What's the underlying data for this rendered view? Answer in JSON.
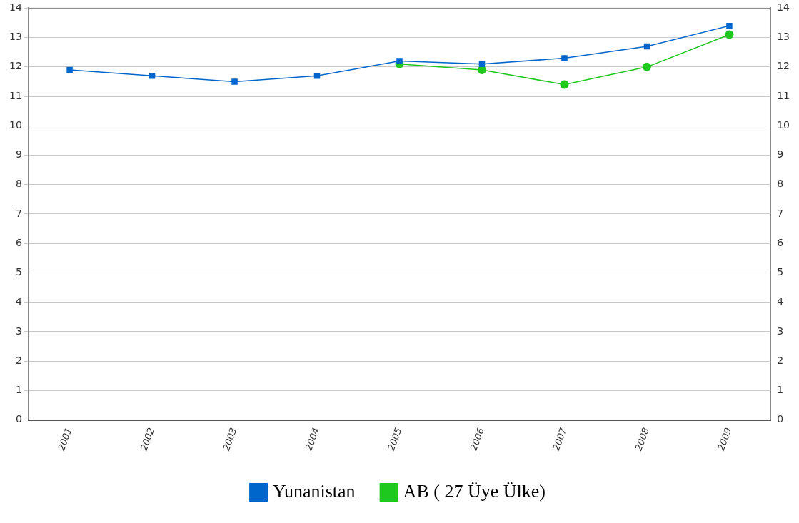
{
  "chart_data": {
    "type": "line",
    "categories": [
      "2001",
      "2002",
      "2003",
      "2004",
      "2005",
      "2006",
      "2007",
      "2008",
      "2009"
    ],
    "series": [
      {
        "name": "AB ( 27 Üye Ülke)",
        "color": "#1ec81e",
        "marker": "circle",
        "values": [
          null,
          null,
          null,
          null,
          12.1,
          11.9,
          11.4,
          12.0,
          13.1
        ]
      },
      {
        "name": "Yunanistan",
        "color": "#0066cc",
        "marker": "square",
        "values": [
          11.9,
          11.7,
          11.5,
          11.7,
          12.2,
          12.1,
          12.3,
          12.7,
          13.4
        ]
      }
    ],
    "ylim": [
      0,
      14
    ],
    "yticks": [
      0,
      1,
      2,
      3,
      4,
      5,
      6,
      7,
      8,
      9,
      10,
      11,
      12,
      13,
      14
    ],
    "y2lim": [
      0,
      14
    ],
    "y2ticks": [
      0,
      1,
      2,
      3,
      4,
      5,
      6,
      7,
      8,
      9,
      10,
      11,
      12,
      13,
      14
    ],
    "grid": "y",
    "legend": "bottom",
    "line_style": "solid"
  }
}
